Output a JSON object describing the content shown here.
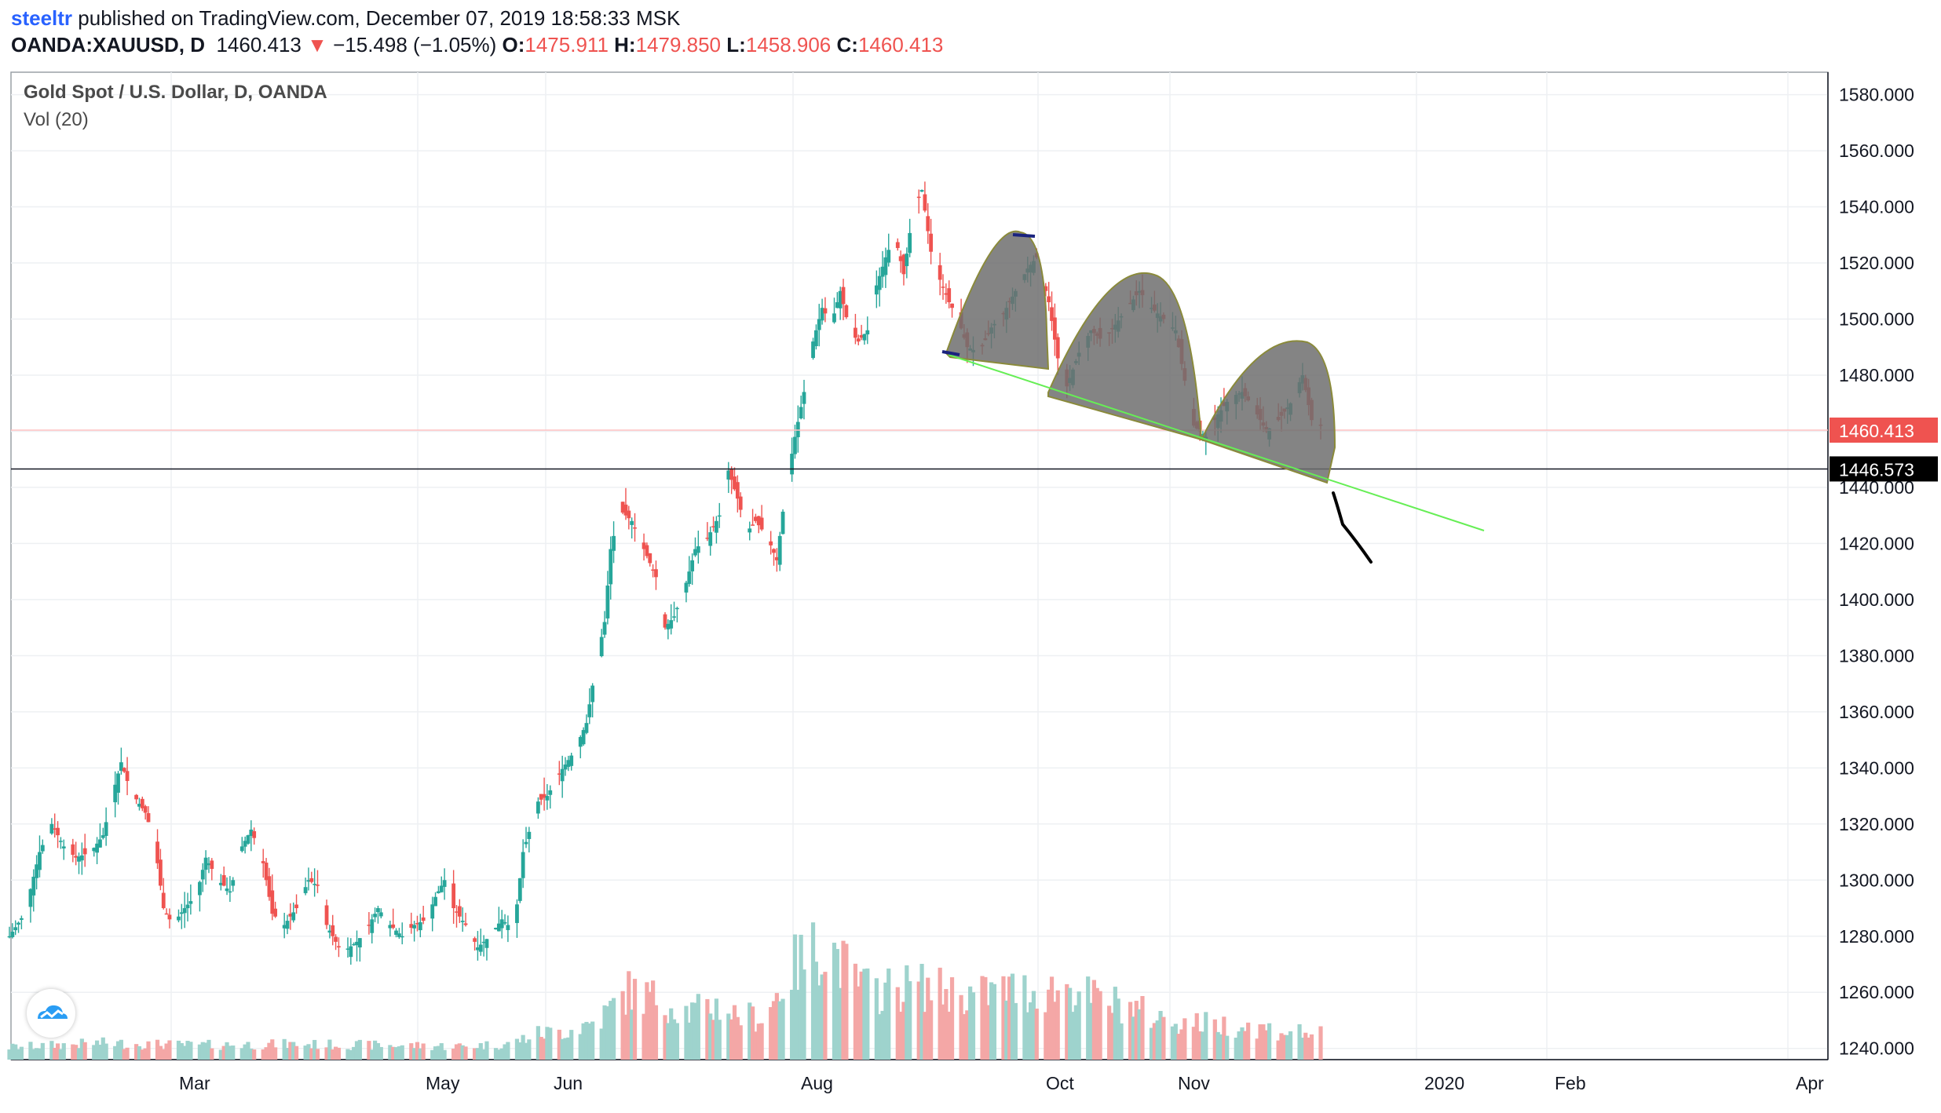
{
  "header": {
    "author": "steeltr",
    "published_text": "published on TradingView.com, December 07, 2019 18:58:33 MSK",
    "symbol": "OANDA:XAUUSD, D",
    "last": "1460.413",
    "arrow": "▼",
    "change": "−15.498 (−1.05%)",
    "o_label": "O:",
    "o_value": "1475.911",
    "h_label": "H:",
    "h_value": "1479.850",
    "l_label": "L:",
    "l_value": "1458.906",
    "c_label": "C:",
    "c_value": "1460.413"
  },
  "legend": {
    "title": "Gold Spot / U.S. Dollar, D, OANDA",
    "volume": "Vol (20)"
  },
  "colors": {
    "up": "#26a69a",
    "down": "#ef5350",
    "volume_up": "#9ed3cd",
    "volume_down": "#f4a7a6",
    "price_line": "#ffc2c2",
    "trendline": "#66ee55",
    "shape_fill": "#6f6f6f",
    "shape_stroke": "#8a8a3a",
    "grid": "#eef0f3"
  },
  "chart_data": {
    "type": "candlestick",
    "title": "Gold Spot / U.S. Dollar, D, OANDA",
    "symbol": "OANDA:XAUUSD",
    "interval": "D",
    "y_ticks": [
      "1580.000",
      "1560.000",
      "1540.000",
      "1520.000",
      "1500.000",
      "1480.000",
      "1460.000",
      "1440.000",
      "1420.000",
      "1400.000",
      "1380.000",
      "1360.000",
      "1340.000",
      "1320.000",
      "1300.000",
      "1280.000",
      "1260.000",
      "1240.000"
    ],
    "x_ticks": [
      "Mar",
      "May",
      "Jun",
      "Aug",
      "Oct",
      "Nov",
      "2020",
      "Feb",
      "Apr"
    ],
    "ylim": [
      1236,
      1588
    ],
    "grid": true,
    "last_price": {
      "value": 1460.413,
      "label": "1460.413"
    },
    "horizontal_line": {
      "value": 1446.573,
      "label": "1446.573"
    },
    "close_path": [
      [
        0,
        1280
      ],
      [
        5,
        1288
      ],
      [
        10,
        1310
      ],
      [
        14,
        1320
      ],
      [
        18,
        1312
      ],
      [
        22,
        1308
      ],
      [
        27,
        1310
      ],
      [
        31,
        1316
      ],
      [
        34,
        1330
      ],
      [
        37,
        1342
      ],
      [
        40,
        1332
      ],
      [
        45,
        1324
      ],
      [
        48,
        1314
      ],
      [
        51,
        1290
      ],
      [
        54,
        1284
      ],
      [
        58,
        1290
      ],
      [
        62,
        1295
      ],
      [
        65,
        1308
      ],
      [
        69,
        1300
      ],
      [
        73,
        1296
      ],
      [
        77,
        1312
      ],
      [
        80,
        1318
      ],
      [
        84,
        1306
      ],
      [
        87,
        1288
      ],
      [
        91,
        1284
      ],
      [
        95,
        1290
      ],
      [
        99,
        1300
      ],
      [
        102,
        1298
      ],
      [
        105,
        1284
      ],
      [
        110,
        1274
      ],
      [
        115,
        1278
      ],
      [
        118,
        1282
      ],
      [
        122,
        1290
      ],
      [
        126,
        1284
      ],
      [
        130,
        1280
      ],
      [
        134,
        1284
      ],
      [
        138,
        1286
      ],
      [
        141,
        1294
      ],
      [
        145,
        1302
      ],
      [
        147,
        1290
      ],
      [
        151,
        1284
      ],
      [
        155,
        1276
      ],
      [
        159,
        1280
      ],
      [
        163,
        1286
      ],
      [
        167,
        1282
      ],
      [
        170,
        1310
      ],
      [
        175,
        1328
      ],
      [
        178,
        1330
      ],
      [
        182,
        1338
      ],
      [
        187,
        1346
      ],
      [
        191,
        1356
      ],
      [
        194,
        1376
      ],
      [
        197,
        1392
      ],
      [
        199,
        1418
      ],
      [
        202,
        1432
      ],
      [
        206,
        1428
      ],
      [
        210,
        1418
      ],
      [
        214,
        1408
      ],
      [
        217,
        1390
      ],
      [
        220,
        1394
      ],
      [
        224,
        1406
      ],
      [
        227,
        1418
      ],
      [
        231,
        1422
      ],
      [
        235,
        1430
      ],
      [
        238,
        1446
      ],
      [
        241,
        1436
      ],
      [
        244,
        1424
      ],
      [
        247,
        1428
      ],
      [
        251,
        1422
      ],
      [
        254,
        1414
      ],
      [
        257,
        1440
      ],
      [
        260,
        1458
      ],
      [
        263,
        1474
      ],
      [
        266,
        1492
      ],
      [
        269,
        1504
      ],
      [
        272,
        1498
      ],
      [
        275,
        1510
      ],
      [
        278,
        1496
      ],
      [
        281,
        1492
      ],
      [
        284,
        1496
      ],
      [
        287,
        1512
      ],
      [
        290,
        1522
      ],
      [
        293,
        1530
      ],
      [
        296,
        1516
      ],
      [
        299,
        1538
      ],
      [
        302,
        1546
      ],
      [
        305,
        1524
      ],
      [
        308,
        1514
      ],
      [
        311,
        1506
      ],
      [
        314,
        1500
      ],
      [
        317,
        1490
      ],
      [
        321,
        1488
      ],
      [
        325,
        1497
      ],
      [
        329,
        1502
      ],
      [
        333,
        1510
      ],
      [
        337,
        1518
      ],
      [
        340,
        1522
      ],
      [
        344,
        1506
      ],
      [
        347,
        1486
      ],
      [
        350,
        1476
      ],
      [
        354,
        1488
      ],
      [
        358,
        1496
      ],
      [
        362,
        1492
      ],
      [
        366,
        1498
      ],
      [
        370,
        1504
      ],
      [
        374,
        1510
      ],
      [
        378,
        1504
      ],
      [
        382,
        1500
      ],
      [
        386,
        1496
      ],
      [
        389,
        1478
      ],
      [
        392,
        1462
      ],
      [
        396,
        1458
      ],
      [
        400,
        1466
      ],
      [
        404,
        1472
      ],
      [
        408,
        1474
      ],
      [
        412,
        1468
      ],
      [
        416,
        1460
      ],
      [
        420,
        1464
      ],
      [
        424,
        1470
      ],
      [
        428,
        1480
      ],
      [
        431,
        1464
      ],
      [
        434,
        1462
      ]
    ],
    "candles_start": "2019-01-30",
    "candles_end": "2019-12-06",
    "volume_ylim": [
      0,
      100
    ],
    "volume_envelope": [
      [
        0,
        12
      ],
      [
        30,
        16
      ],
      [
        60,
        14
      ],
      [
        90,
        15
      ],
      [
        120,
        14
      ],
      [
        150,
        13
      ],
      [
        165,
        15
      ],
      [
        175,
        25
      ],
      [
        185,
        28
      ],
      [
        195,
        38
      ],
      [
        205,
        66
      ],
      [
        215,
        58
      ],
      [
        225,
        46
      ],
      [
        235,
        52
      ],
      [
        240,
        44
      ],
      [
        250,
        40
      ],
      [
        258,
        85
      ],
      [
        262,
        95
      ],
      [
        268,
        110
      ],
      [
        272,
        108
      ],
      [
        278,
        82
      ],
      [
        285,
        65
      ],
      [
        290,
        68
      ],
      [
        300,
        72
      ],
      [
        310,
        66
      ],
      [
        320,
        62
      ],
      [
        330,
        68
      ],
      [
        340,
        65
      ],
      [
        350,
        70
      ],
      [
        360,
        58
      ],
      [
        370,
        52
      ],
      [
        380,
        40
      ],
      [
        390,
        36
      ],
      [
        400,
        34
      ],
      [
        410,
        32
      ],
      [
        420,
        28
      ],
      [
        430,
        26
      ],
      [
        434,
        24
      ]
    ]
  }
}
